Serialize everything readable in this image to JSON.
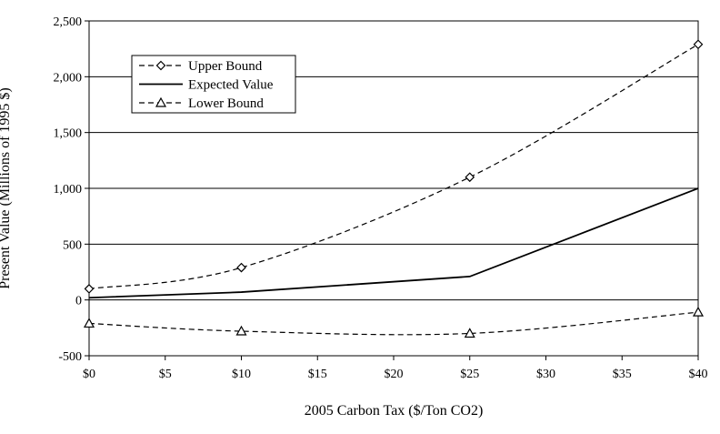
{
  "chart_data": {
    "type": "line",
    "title": "",
    "xlabel": "2005 Carbon Tax ($/Ton CO2)",
    "ylabel": "Present Value (Millions of 1995 $)",
    "x": [
      0,
      10,
      25,
      40
    ],
    "xlim": [
      0,
      40
    ],
    "ylim": [
      -500,
      2500
    ],
    "x_ticks": [
      0,
      5,
      10,
      15,
      20,
      25,
      30,
      35,
      40
    ],
    "x_tick_labels": [
      "$0",
      "$5",
      "$10",
      "$15",
      "$20",
      "$25",
      "$30",
      "$35",
      "$40"
    ],
    "y_ticks": [
      -500,
      0,
      500,
      1000,
      1500,
      2000,
      2500
    ],
    "y_tick_labels": [
      "-500",
      "0",
      "500",
      "1,000",
      "1,500",
      "2,000",
      "2,500"
    ],
    "grid": "horizontal",
    "legend_position": "top-left",
    "series": [
      {
        "name": "Upper Bound",
        "values": [
          100,
          290,
          1100,
          2290
        ],
        "line": "dashed",
        "marker": "diamond"
      },
      {
        "name": "Expected Value",
        "values": [
          20,
          70,
          210,
          1000
        ],
        "line": "solid",
        "marker": "none"
      },
      {
        "name": "Lower Bound",
        "values": [
          -210,
          -280,
          -300,
          -110
        ],
        "line": "dashed",
        "marker": "triangle"
      }
    ]
  }
}
